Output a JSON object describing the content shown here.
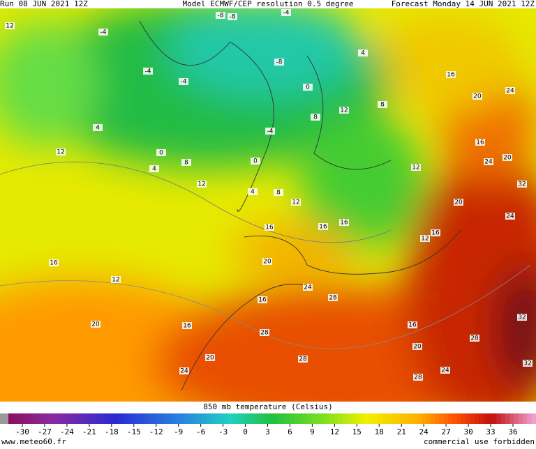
{
  "header": {
    "run": "Run 08 JUN 2021 12Z",
    "model": "Model ECMWF/CEP resolution 0.5 degree",
    "forecast": "Forecast Monday 14 JUN 2021 12Z"
  },
  "map": {
    "contour_labels": [
      12,
      -4,
      -8,
      -8,
      -4,
      -4,
      -4,
      -8,
      0,
      4,
      16,
      20,
      24,
      16,
      20,
      24,
      32,
      12,
      0,
      4,
      8,
      12,
      0,
      4,
      8,
      12,
      16,
      16,
      16,
      12,
      20,
      24,
      16,
      12,
      20,
      16,
      12,
      16,
      24,
      28,
      20,
      16,
      16,
      28,
      20,
      28,
      32,
      20,
      24,
      28,
      24,
      28,
      32,
      12,
      8,
      8,
      4,
      -4
    ]
  },
  "colorbar": {
    "title": "850 mb temperature (Celsius)",
    "ticks": [
      -30,
      -27,
      -24,
      -21,
      -18,
      -15,
      -12,
      -9,
      -6,
      -3,
      0,
      3,
      6,
      9,
      12,
      15,
      18,
      21,
      24,
      27,
      30,
      33,
      36
    ]
  },
  "footer": {
    "site": "www.meteo60.fr",
    "notice": "commercial use forbidden"
  }
}
